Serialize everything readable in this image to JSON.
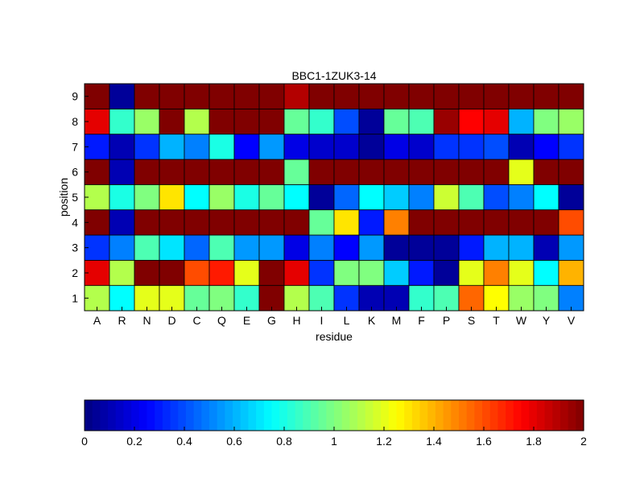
{
  "chart_data": {
    "type": "heatmap",
    "title": "BBC1-1ZUK3-14",
    "xlabel": "residue",
    "ylabel": "position",
    "x": [
      "A",
      "R",
      "N",
      "D",
      "C",
      "Q",
      "E",
      "G",
      "H",
      "I",
      "L",
      "K",
      "M",
      "F",
      "P",
      "S",
      "T",
      "W",
      "Y",
      "V"
    ],
    "y": [
      "1",
      "2",
      "3",
      "4",
      "5",
      "6",
      "7",
      "8",
      "9"
    ],
    "values": [
      [
        1.1,
        0.75,
        1.2,
        1.2,
        0.95,
        1.0,
        0.85,
        2.0,
        1.1,
        0.9,
        0.35,
        0.1,
        0.1,
        0.85,
        0.9,
        1.55,
        1.25,
        1.05,
        1.0,
        0.5
      ],
      [
        1.8,
        1.1,
        2.0,
        2.0,
        1.6,
        1.7,
        1.2,
        2.0,
        1.8,
        0.35,
        1.0,
        1.0,
        0.65,
        0.3,
        0.05,
        1.2,
        1.5,
        1.2,
        0.75,
        1.4
      ],
      [
        0.35,
        0.5,
        0.9,
        0.7,
        0.45,
        0.9,
        0.55,
        0.55,
        0.2,
        0.5,
        0.25,
        0.55,
        0.05,
        0.05,
        0.05,
        0.3,
        0.6,
        0.6,
        0.1,
        0.55
      ],
      [
        2.0,
        0.1,
        2.0,
        2.0,
        2.0,
        2.0,
        2.0,
        2.0,
        2.0,
        0.95,
        1.3,
        0.3,
        1.5,
        2.0,
        2.0,
        2.0,
        2.0,
        2.0,
        2.0,
        1.6
      ],
      [
        1.1,
        0.8,
        1.0,
        1.3,
        0.75,
        1.05,
        0.8,
        0.95,
        0.75,
        0.05,
        0.45,
        0.75,
        0.65,
        0.5,
        1.15,
        0.9,
        0.4,
        0.5,
        0.75,
        0.05
      ],
      [
        2.0,
        0.1,
        2.0,
        2.0,
        2.0,
        2.0,
        2.0,
        2.0,
        0.95,
        2.0,
        2.0,
        2.0,
        2.0,
        2.0,
        2.0,
        2.0,
        2.0,
        1.2,
        2.0,
        2.0
      ],
      [
        0.3,
        0.1,
        0.35,
        0.6,
        0.5,
        0.8,
        0.25,
        0.55,
        0.2,
        0.15,
        0.15,
        0.05,
        0.2,
        0.15,
        0.35,
        0.35,
        0.4,
        0.1,
        0.25,
        0.35
      ],
      [
        1.8,
        0.85,
        1.05,
        2.0,
        1.1,
        2.0,
        2.0,
        2.0,
        0.95,
        0.85,
        0.4,
        0.05,
        0.95,
        0.9,
        1.95,
        1.75,
        1.8,
        0.6,
        1.0,
        1.05
      ],
      [
        2.0,
        0.05,
        2.0,
        2.0,
        2.0,
        2.0,
        2.0,
        2.0,
        1.9,
        2.0,
        2.0,
        2.0,
        2.0,
        2.0,
        2.0,
        2.0,
        2.0,
        2.0,
        2.0,
        2.0
      ]
    ],
    "colormap": "jet",
    "clim": [
      0,
      2
    ],
    "colorbar": {
      "orientation": "horizontal",
      "placement": "bottom",
      "ticks": [
        "0",
        "0.2",
        "0.4",
        "0.6",
        "0.8",
        "1",
        "1.2",
        "1.4",
        "1.6",
        "1.8",
        "2"
      ]
    },
    "grid": false
  }
}
